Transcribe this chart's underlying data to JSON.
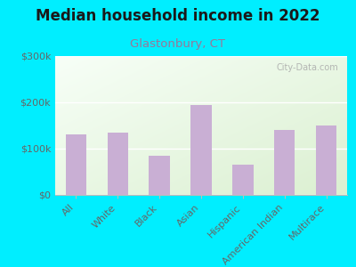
{
  "title": "Median household income in 2022",
  "subtitle": "Glastonbury, CT",
  "categories": [
    "All",
    "White",
    "Black",
    "Asian",
    "Hispanic",
    "American Indian",
    "Multirace"
  ],
  "values": [
    130000,
    135000,
    85000,
    195000,
    65000,
    140000,
    150000
  ],
  "bar_color": "#c9afd4",
  "background_outer": "#00eeff",
  "background_inner_topleft": "#f5fff5",
  "background_inner_bottomright": "#e8f5e0",
  "title_color": "#1a1a1a",
  "subtitle_color": "#997799",
  "tick_color": "#666666",
  "label_color": "#666666",
  "watermark": "City-Data.com",
  "ylim": [
    0,
    300000
  ],
  "yticks": [
    0,
    100000,
    200000,
    300000
  ],
  "ytick_labels": [
    "$0",
    "$100k",
    "$200k",
    "$300k"
  ],
  "title_fontsize": 12,
  "subtitle_fontsize": 9.5,
  "tick_fontsize": 8,
  "xlabel_fontsize": 8
}
